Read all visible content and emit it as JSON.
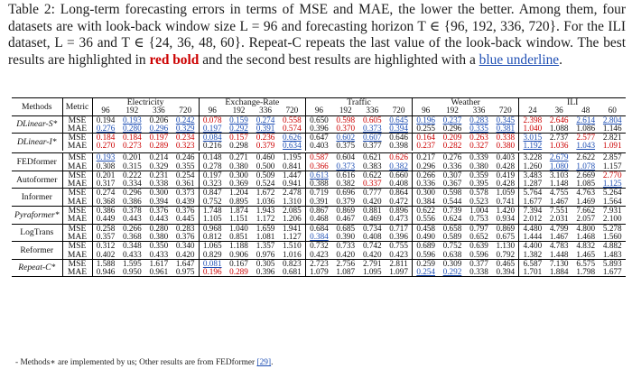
{
  "caption": {
    "part1": "Table 2: Long-term forecasting errors in terms of MSE and MAE, the lower the better. Among them, four datasets are with look-back window size L = 96 and forecasting horizon T ∈ {96, 192, 336, 720}. For the ILI dataset, L = 36 and T ∈ {24, 36, 48, 60}. Repeat-C repeats the last value of the look-back window. The best results are highlighted in ",
    "red_bold": "red bold",
    "part2": " and the second best results are highlighted with a ",
    "blue_underline": "blue underline",
    "part3": "."
  },
  "table": {
    "methods_header": "Methods",
    "metric_header": "Metric",
    "datasets": [
      {
        "name": "Electricity",
        "horizons": [
          "96",
          "192",
          "336",
          "720"
        ]
      },
      {
        "name": "Exchange-Rate",
        "horizons": [
          "96",
          "192",
          "336",
          "720"
        ]
      },
      {
        "name": "Traffic",
        "horizons": [
          "96",
          "192",
          "336",
          "720"
        ]
      },
      {
        "name": "Weather",
        "horizons": [
          "96",
          "192",
          "336",
          "720"
        ]
      },
      {
        "name": "ILI",
        "horizons": [
          "24",
          "36",
          "48",
          "60"
        ]
      }
    ],
    "groups": [
      {
        "method": "DLinear-S*",
        "rows": [
          {
            "metric": "MSE",
            "values": [
              "0.194",
              "0.193",
              "0.206",
              "0.242",
              "0.078",
              "0.159",
              "0.274",
              "0.558",
              "0.650",
              "0.598",
              "0.605",
              "0.645",
              "0.196",
              "0.237",
              "0.283",
              "0.345",
              "2.398",
              "2.646",
              "2.614",
              "2.804"
            ],
            "styles": [
              0,
              2,
              0,
              2,
              1,
              2,
              2,
              1,
              0,
              1,
              1,
              2,
              2,
              2,
              2,
              2,
              1,
              1,
              2,
              2
            ]
          },
          {
            "metric": "MAE",
            "values": [
              "0.276",
              "0.280",
              "0.296",
              "0.329",
              "0.197",
              "0.292",
              "0.391",
              "0.574",
              "0.396",
              "0.370",
              "0.373",
              "0.394",
              "0.255",
              "0.296",
              "0.335",
              "0.381",
              "1.040",
              "1.088",
              "1.086",
              "1.146"
            ],
            "styles": [
              2,
              2,
              2,
              2,
              2,
              2,
              2,
              1,
              0,
              1,
              2,
              2,
              0,
              0,
              2,
              2,
              1,
              0,
              0,
              0
            ]
          }
        ]
      },
      {
        "method": "DLinear-I*",
        "rows": [
          {
            "metric": "MSE",
            "values": [
              "0.184",
              "0.184",
              "0.197",
              "0.234",
              "0.084",
              "0.157",
              "0.236",
              "0.626",
              "0.647",
              "0.602",
              "0.607",
              "0.646",
              "0.164",
              "0.209",
              "0.263",
              "0.338",
              "3.015",
              "2.737",
              "2.577",
              "2.821"
            ],
            "styles": [
              1,
              1,
              1,
              1,
              2,
              1,
              1,
              2,
              0,
              2,
              2,
              0,
              1,
              1,
              1,
              1,
              2,
              0,
              1,
              0
            ]
          },
          {
            "metric": "MAE",
            "values": [
              "0.270",
              "0.273",
              "0.289",
              "0.323",
              "0.216",
              "0.298",
              "0.379",
              "0.634",
              "0.403",
              "0.375",
              "0.377",
              "0.398",
              "0.237",
              "0.282",
              "0.327",
              "0.380",
              "1.192",
              "1.036",
              "1.043",
              "1.091"
            ],
            "styles": [
              1,
              1,
              1,
              1,
              0,
              0,
              1,
              2,
              0,
              0,
              0,
              0,
              1,
              1,
              1,
              1,
              2,
              1,
              2,
              1
            ]
          }
        ]
      },
      {
        "method": "FEDformer",
        "rows": [
          {
            "metric": "MSE",
            "values": [
              "0.193",
              "0.201",
              "0.214",
              "0.246",
              "0.148",
              "0.271",
              "0.460",
              "1.195",
              "0.587",
              "0.604",
              "0.621",
              "0.626",
              "0.217",
              "0.276",
              "0.339",
              "0.403",
              "3.228",
              "2.679",
              "2.622",
              "2.857"
            ],
            "styles": [
              2,
              0,
              0,
              0,
              0,
              0,
              0,
              0,
              1,
              0,
              0,
              1,
              0,
              0,
              0,
              0,
              0,
              2,
              0,
              0
            ]
          },
          {
            "metric": "MAE",
            "values": [
              "0.308",
              "0.315",
              "0.329",
              "0.355",
              "0.278",
              "0.380",
              "0.500",
              "0.841",
              "0.366",
              "0.373",
              "0.383",
              "0.382",
              "0.296",
              "0.336",
              "0.380",
              "0.428",
              "1.260",
              "1.080",
              "1.078",
              "1.157"
            ],
            "styles": [
              0,
              0,
              0,
              0,
              0,
              0,
              0,
              0,
              1,
              2,
              0,
              2,
              0,
              0,
              0,
              0,
              0,
              2,
              2,
              0
            ]
          }
        ]
      },
      {
        "method": "Autoformer",
        "rows": [
          {
            "metric": "MSE",
            "values": [
              "0.201",
              "0.222",
              "0.231",
              "0.254",
              "0.197",
              "0.300",
              "0.509",
              "1.447",
              "0.613",
              "0.616",
              "0.622",
              "0.660",
              "0.266",
              "0.307",
              "0.359",
              "0.419",
              "3.483",
              "3.103",
              "2.669",
              "2.770"
            ],
            "styles": [
              0,
              0,
              0,
              0,
              0,
              0,
              0,
              0,
              2,
              0,
              0,
              0,
              0,
              0,
              0,
              0,
              0,
              0,
              0,
              1
            ]
          },
          {
            "metric": "MAE",
            "values": [
              "0.317",
              "0.334",
              "0.338",
              "0.361",
              "0.323",
              "0.369",
              "0.524",
              "0.941",
              "0.388",
              "0.382",
              "0.337",
              "0.408",
              "0.336",
              "0.367",
              "0.395",
              "0.428",
              "1.287",
              "1.148",
              "1.085",
              "1.125"
            ],
            "styles": [
              0,
              0,
              0,
              0,
              0,
              0,
              0,
              0,
              0,
              0,
              1,
              0,
              0,
              0,
              0,
              0,
              0,
              0,
              0,
              2
            ]
          }
        ]
      },
      {
        "method": "Informer",
        "rows": [
          {
            "metric": "MSE",
            "values": [
              "0.274",
              "0.296",
              "0.300",
              "0.373",
              "0.847",
              "1.204",
              "1.672",
              "2.478",
              "0.719",
              "0.696",
              "0.777",
              "0.864",
              "0.300",
              "0.598",
              "0.578",
              "1.059",
              "5.764",
              "4.755",
              "4.763",
              "5.264"
            ],
            "styles": [
              0,
              0,
              0,
              0,
              0,
              0,
              0,
              0,
              0,
              0,
              0,
              0,
              0,
              0,
              0,
              0,
              0,
              0,
              0,
              0
            ]
          },
          {
            "metric": "MAE",
            "values": [
              "0.368",
              "0.386",
              "0.394",
              "0.439",
              "0.752",
              "0.895",
              "1.036",
              "1.310",
              "0.391",
              "0.379",
              "0.420",
              "0.472",
              "0.384",
              "0.544",
              "0.523",
              "0.741",
              "1.677",
              "1.467",
              "1.469",
              "1.564"
            ],
            "styles": [
              0,
              0,
              0,
              0,
              0,
              0,
              0,
              0,
              0,
              0,
              0,
              0,
              0,
              0,
              0,
              0,
              0,
              0,
              0,
              0
            ]
          }
        ]
      },
      {
        "method": "Pyraformer*",
        "rows": [
          {
            "metric": "MSE",
            "values": [
              "0.386",
              "0.378",
              "0.376",
              "0.376",
              "1.748",
              "1.874",
              "1.943",
              "2.085",
              "0.867",
              "0.869",
              "0.881",
              "0.896",
              "0.622",
              "0.739",
              "1.004",
              "1.420",
              "7.394",
              "7.551",
              "7.662",
              "7.931"
            ],
            "styles": [
              0,
              0,
              0,
              0,
              0,
              0,
              0,
              0,
              0,
              0,
              0,
              0,
              0,
              0,
              0,
              0,
              0,
              0,
              0,
              0
            ]
          },
          {
            "metric": "MAE",
            "values": [
              "0.449",
              "0.443",
              "0.443",
              "0.445",
              "1.105",
              "1.151",
              "1.172",
              "1.206",
              "0.468",
              "0.467",
              "0.469",
              "0.473",
              "0.556",
              "0.624",
              "0.753",
              "0.934",
              "2.012",
              "2.031",
              "2.057",
              "2.100"
            ],
            "styles": [
              0,
              0,
              0,
              0,
              0,
              0,
              0,
              0,
              0,
              0,
              0,
              0,
              0,
              0,
              0,
              0,
              0,
              0,
              0,
              0
            ]
          }
        ]
      },
      {
        "method": "LogTrans",
        "rows": [
          {
            "metric": "MSE",
            "values": [
              "0.258",
              "0.266",
              "0.280",
              "0.283",
              "0.968",
              "1.040",
              "1.659",
              "1.941",
              "0.684",
              "0.685",
              "0.734",
              "0.717",
              "0.458",
              "0.658",
              "0.797",
              "0.869",
              "4.480",
              "4.799",
              "4.800",
              "5.278"
            ],
            "styles": [
              0,
              0,
              0,
              0,
              0,
              0,
              0,
              0,
              0,
              0,
              0,
              0,
              0,
              0,
              0,
              0,
              0,
              0,
              0,
              0
            ]
          },
          {
            "metric": "MAE",
            "values": [
              "0.357",
              "0.368",
              "0.380",
              "0.376",
              "0.812",
              "0.851",
              "1.081",
              "1.127",
              "0.384",
              "0.390",
              "0.408",
              "0.396",
              "0.490",
              "0.589",
              "0.652",
              "0.675",
              "1.444",
              "1.467",
              "1.468",
              "1.560"
            ],
            "styles": [
              0,
              0,
              0,
              0,
              0,
              0,
              0,
              0,
              2,
              0,
              0,
              0,
              0,
              0,
              0,
              0,
              0,
              0,
              0,
              0
            ]
          }
        ]
      },
      {
        "method": "Reformer",
        "rows": [
          {
            "metric": "MSE",
            "values": [
              "0.312",
              "0.348",
              "0.350",
              "0.340",
              "1.065",
              "1.188",
              "1.357",
              "1.510",
              "0.732",
              "0.733",
              "0.742",
              "0.755",
              "0.689",
              "0.752",
              "0.639",
              "1.130",
              "4.400",
              "4.783",
              "4.832",
              "4.882"
            ],
            "styles": [
              0,
              0,
              0,
              0,
              0,
              0,
              0,
              0,
              0,
              0,
              0,
              0,
              0,
              0,
              0,
              0,
              0,
              0,
              0,
              0
            ]
          },
          {
            "metric": "MAE",
            "values": [
              "0.402",
              "0.433",
              "0.433",
              "0.420",
              "0.829",
              "0.906",
              "0.976",
              "1.016",
              "0.423",
              "0.420",
              "0.420",
              "0.423",
              "0.596",
              "0.638",
              "0.596",
              "0.792",
              "1.382",
              "1.448",
              "1.465",
              "1.483"
            ],
            "styles": [
              0,
              0,
              0,
              0,
              0,
              0,
              0,
              0,
              0,
              0,
              0,
              0,
              0,
              0,
              0,
              0,
              0,
              0,
              0,
              0
            ]
          }
        ]
      },
      {
        "method": "Repeat-C*",
        "rows": [
          {
            "metric": "MSE",
            "values": [
              "1.588",
              "1.595",
              "1.617",
              "1.647",
              "0.081",
              "0.167",
              "0.305",
              "0.823",
              "2.723",
              "2.756",
              "2.791",
              "2.811",
              "0.259",
              "0.309",
              "0.377",
              "0.465",
              "6.587",
              "7.130",
              "6.575",
              "5.893"
            ],
            "styles": [
              0,
              0,
              0,
              0,
              2,
              0,
              0,
              0,
              0,
              0,
              0,
              0,
              0,
              0,
              0,
              0,
              0,
              0,
              0,
              0
            ]
          },
          {
            "metric": "MAE",
            "values": [
              "0.946",
              "0.950",
              "0.961",
              "0.975",
              "0.196",
              "0.289",
              "0.396",
              "0.681",
              "1.079",
              "1.087",
              "1.095",
              "1.097",
              "0.254",
              "0.292",
              "0.338",
              "0.394",
              "1.701",
              "1.884",
              "1.798",
              "1.677"
            ],
            "styles": [
              0,
              0,
              0,
              0,
              1,
              1,
              0,
              0,
              0,
              0,
              0,
              0,
              2,
              2,
              0,
              0,
              0,
              0,
              0,
              0
            ]
          }
        ]
      }
    ]
  },
  "footnote": {
    "text": "- Methods∗ are implemented by us; Other results are from FEDformer ",
    "ref": "[29]",
    "end": "."
  }
}
